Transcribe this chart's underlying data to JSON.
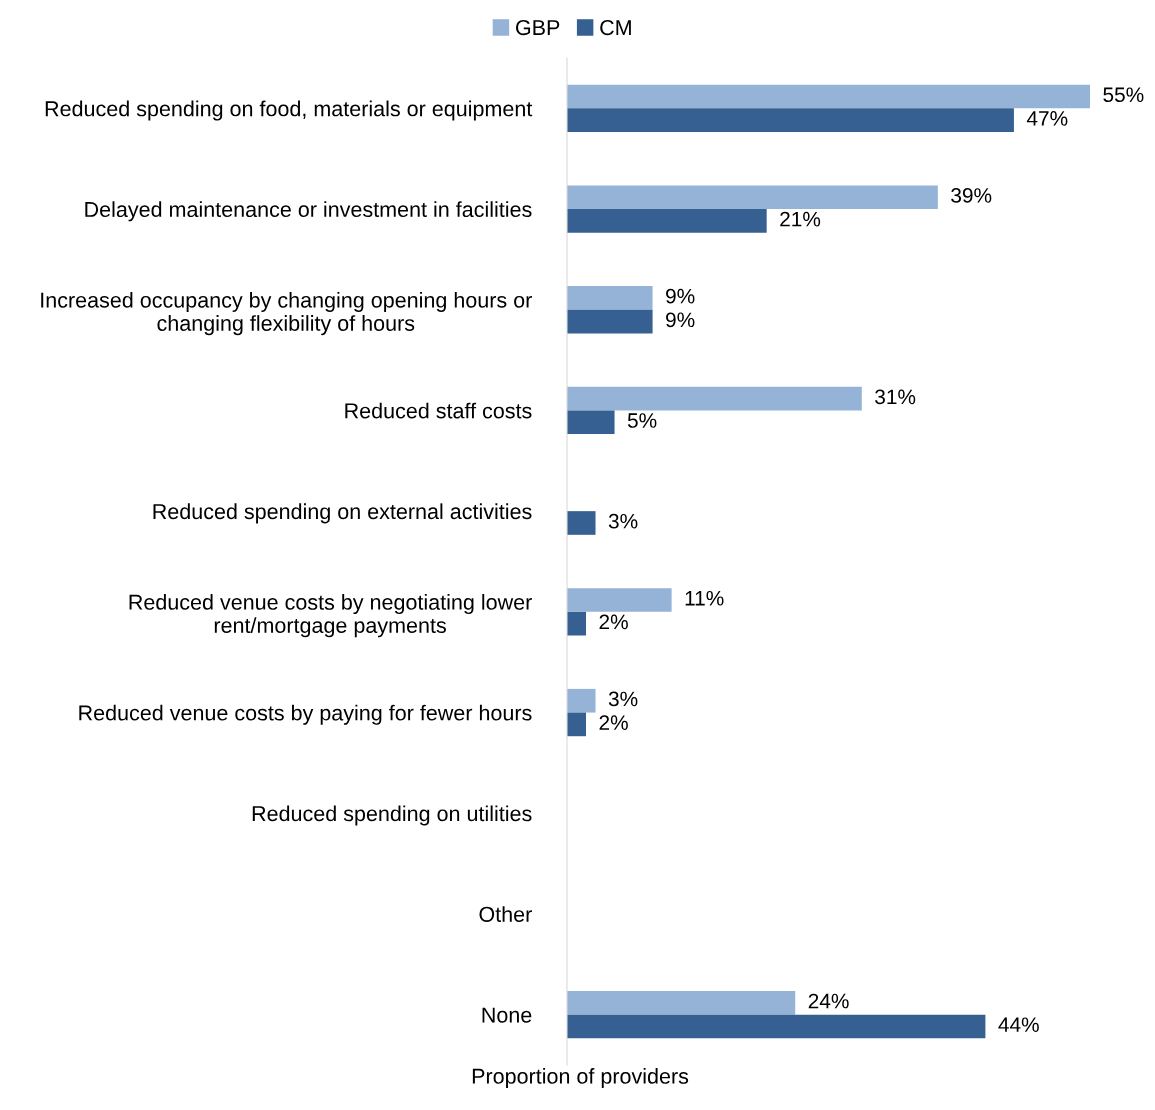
{
  "chart_data": {
    "type": "bar",
    "orientation": "horizontal",
    "xlabel": "Proportion of providers",
    "legend": "top",
    "grid": false,
    "categories": [
      "Reduced spending on food, materials or equipment",
      "Delayed maintenance or investment in facilities",
      "Increased occupancy by changing opening hours or changing flexibility of hours",
      "Reduced staff costs",
      "Reduced spending on external activities",
      "Reduced venue costs by negotiating lower rent/mortgage payments",
      "Reduced venue costs by paying for fewer hours",
      "Reduced spending on utilities",
      "Other",
      "None"
    ],
    "series": [
      {
        "name": "GBP",
        "color": "#95b3d7",
        "values": [
          55,
          39,
          9,
          31,
          null,
          11,
          3,
          null,
          null,
          24
        ],
        "value_labels": [
          "55%",
          "39%",
          "9%",
          "31%",
          null,
          "11%",
          "3%",
          null,
          null,
          "24%"
        ]
      },
      {
        "name": "CM",
        "color": "#376092",
        "values": [
          47,
          21,
          9,
          5,
          3,
          2,
          2,
          null,
          null,
          44
        ],
        "value_labels": [
          "47%",
          "21%",
          "9%",
          "5%",
          "3%",
          "2%",
          "2%",
          null,
          null,
          "44%"
        ]
      }
    ]
  }
}
